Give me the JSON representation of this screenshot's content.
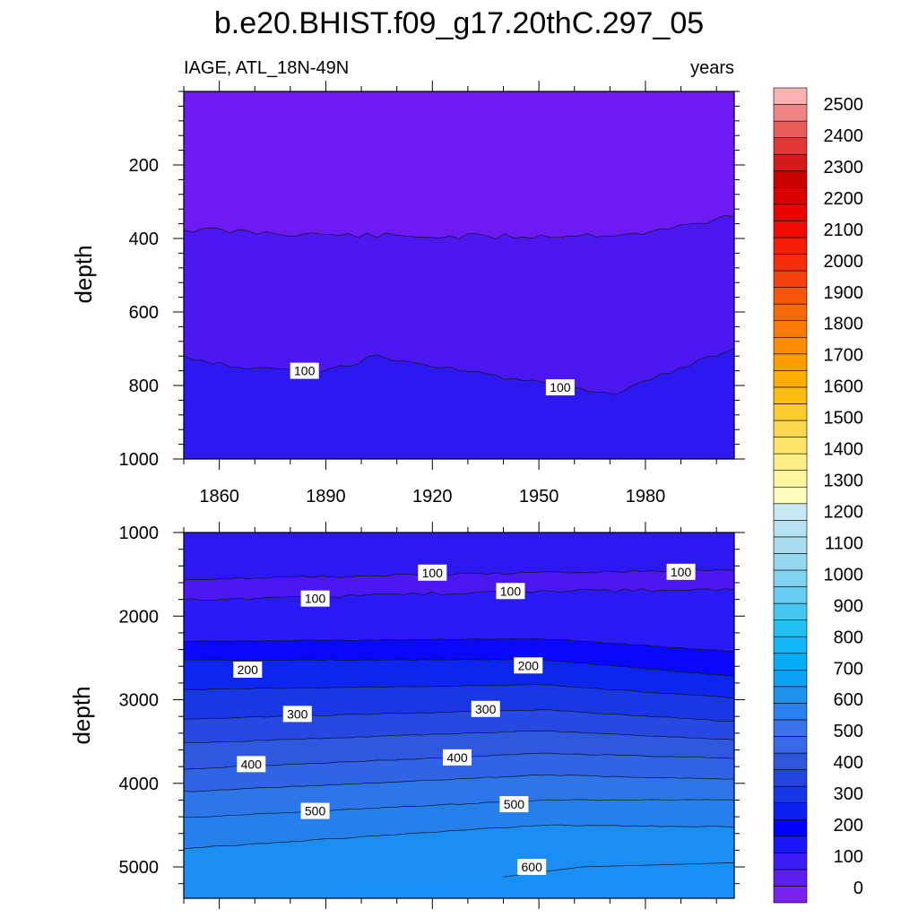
{
  "title": "b.e20.BHIST.f09_g17.20thC.297_05",
  "chart_data": [
    {
      "type": "contour",
      "panel": "upper",
      "left_title": "IAGE, ATL_18N-49N",
      "right_title": "years",
      "xlabel": "",
      "ylabel": "depth",
      "xlim": [
        1850,
        2005
      ],
      "ylim": [
        1000,
        0
      ],
      "x_ticks": [
        1860,
        1890,
        1920,
        1950,
        1980
      ],
      "y_ticks": [
        200,
        400,
        600,
        800,
        1000
      ],
      "bands": [
        {
          "level": 0,
          "color": "#6d1bf2",
          "top_depth": [
            0,
            0
          ],
          "bottom_depth": [
            365,
            400
          ]
        },
        {
          "level": 50,
          "color": "#4c18f2",
          "top_depth": [
            365,
            400
          ],
          "bottom_depth": [
            700,
            830
          ]
        },
        {
          "level": 100,
          "color": "#2d18f2",
          "top_depth": [
            700,
            830
          ],
          "bottom_depth": [
            1000,
            1000
          ]
        }
      ],
      "contour_labels": [
        {
          "text": "100",
          "x": 1884,
          "depth": 760
        },
        {
          "text": "100",
          "x": 1956,
          "depth": 805
        }
      ]
    },
    {
      "type": "contour",
      "panel": "lower",
      "xlabel": "",
      "ylabel": "depth",
      "xlim": [
        1850,
        2005
      ],
      "ylim": [
        5375,
        1000
      ],
      "x_ticks": [
        1860,
        1890,
        1920,
        1950,
        1980
      ],
      "y_ticks": [
        1000,
        2000,
        3000,
        4000,
        5000
      ],
      "contour_labels": [
        {
          "text": "100",
          "x": 1920,
          "depth": 1480
        },
        {
          "text": "100",
          "x": 1990,
          "depth": 1470
        },
        {
          "text": "100",
          "x": 1887,
          "depth": 1790
        },
        {
          "text": "100",
          "x": 1942,
          "depth": 1700
        },
        {
          "text": "200",
          "x": 1868,
          "depth": 2640
        },
        {
          "text": "200",
          "x": 1947,
          "depth": 2590
        },
        {
          "text": "300",
          "x": 1882,
          "depth": 3170
        },
        {
          "text": "300",
          "x": 1935,
          "depth": 3110
        },
        {
          "text": "400",
          "x": 1869,
          "depth": 3770
        },
        {
          "text": "400",
          "x": 1927,
          "depth": 3690
        },
        {
          "text": "500",
          "x": 1887,
          "depth": 4330
        },
        {
          "text": "500",
          "x": 1943,
          "depth": 4250
        },
        {
          "text": "600",
          "x": 1948,
          "depth": 5000
        }
      ]
    }
  ],
  "colorbar": {
    "tick_labels": [
      "0",
      "100",
      "200",
      "300",
      "400",
      "500",
      "600",
      "700",
      "800",
      "900",
      "1000",
      "1100",
      "1200",
      "1300",
      "1400",
      "1500",
      "1600",
      "1700",
      "1800",
      "1900",
      "2000",
      "2100",
      "2200",
      "2300",
      "2400",
      "2500"
    ],
    "colors": [
      "#7a22ee",
      "#5d1ef2",
      "#3c1cf5",
      "#1d16f8",
      "#0000ff",
      "#0a20f0",
      "#1535e8",
      "#2344df",
      "#2f55dd",
      "#3768e5",
      "#3a74ea",
      "#2a80ec",
      "#2090ee",
      "#0ea0f5",
      "#06acf8",
      "#10b6f7",
      "#22c0f3",
      "#46c7f0",
      "#66cdf0",
      "#7fd2f0",
      "#96d8f0",
      "#a8dcf0",
      "#b6e2f2",
      "#c6e8f4",
      "#fefcbc",
      "#fdf5a0",
      "#fdef86",
      "#fde46a",
      "#fcd84a",
      "#fdcb2c",
      "#fcbc12",
      "#fcae04",
      "#fc9d02",
      "#fb8c03",
      "#f97a07",
      "#f76808",
      "#f6550a",
      "#f5410b",
      "#f42c07",
      "#f51b04",
      "#f20b02",
      "#ea0200",
      "#da0000",
      "#cc0000",
      "#d41a1a",
      "#e03636",
      "#e85c5c",
      "#f08484",
      "#fab2b2"
    ]
  }
}
